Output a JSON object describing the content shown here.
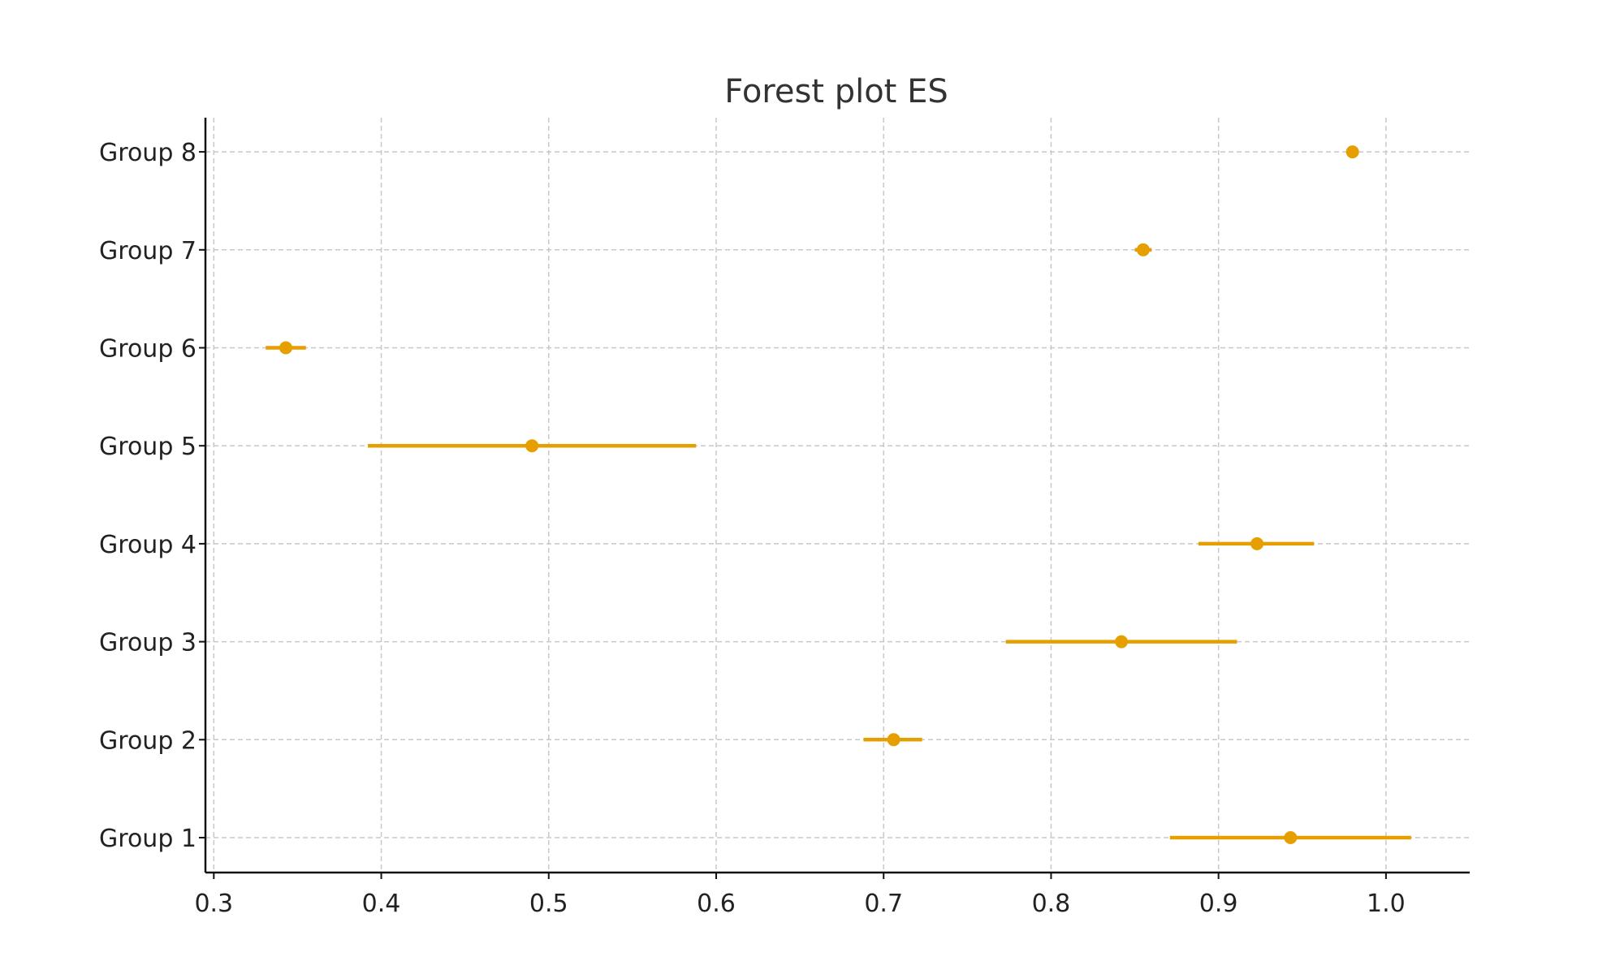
{
  "chart_data": {
    "type": "forest",
    "title": "Forest plot ES",
    "xlabel": "",
    "ylabel": "",
    "xlim": [
      0.295,
      1.05
    ],
    "xticks": [
      "0.3",
      "0.4",
      "0.5",
      "0.6",
      "0.7",
      "0.8",
      "0.9",
      "1.0"
    ],
    "grid": true,
    "color": "#E69F00",
    "groups": [
      {
        "label": "Group 1",
        "estimate": 0.943,
        "ci_low": 0.871,
        "ci_high": 1.015
      },
      {
        "label": "Group 2",
        "estimate": 0.706,
        "ci_low": 0.688,
        "ci_high": 0.723
      },
      {
        "label": "Group 3",
        "estimate": 0.842,
        "ci_low": 0.773,
        "ci_high": 0.911
      },
      {
        "label": "Group 4",
        "estimate": 0.923,
        "ci_low": 0.888,
        "ci_high": 0.957
      },
      {
        "label": "Group 5",
        "estimate": 0.49,
        "ci_low": 0.392,
        "ci_high": 0.588
      },
      {
        "label": "Group 6",
        "estimate": 0.343,
        "ci_low": 0.331,
        "ci_high": 0.355
      },
      {
        "label": "Group 7",
        "estimate": 0.855,
        "ci_low": 0.85,
        "ci_high": 0.86
      },
      {
        "label": "Group 8",
        "estimate": 0.98,
        "ci_low": 0.978,
        "ci_high": 0.982
      }
    ]
  }
}
